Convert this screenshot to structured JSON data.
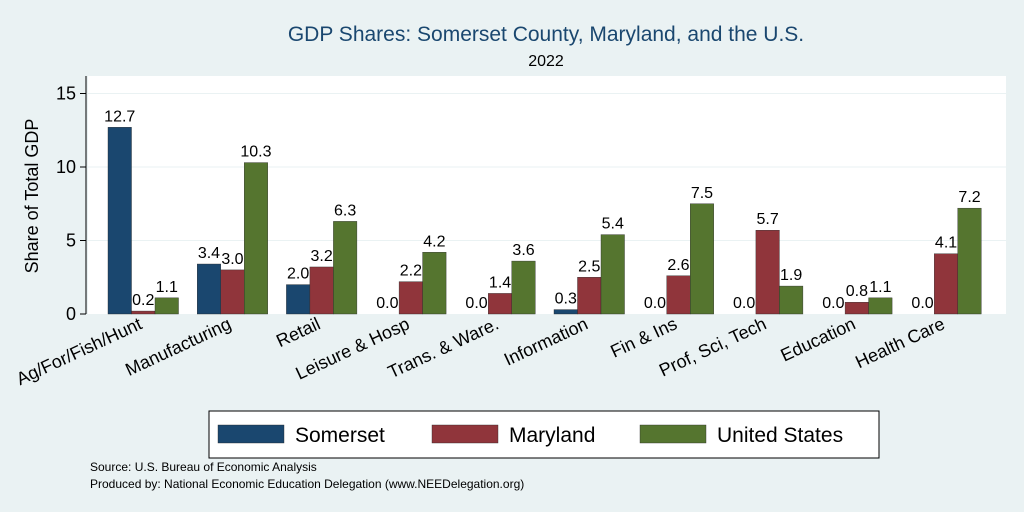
{
  "chart_data": {
    "type": "bar",
    "title": "GDP Shares: Somerset County, Maryland, and the U.S.",
    "subtitle": "2022",
    "xlabel": "",
    "ylabel": "Share of Total GDP",
    "ylim": [
      0,
      16
    ],
    "yticks": [
      0,
      5,
      10,
      15
    ],
    "grid": true,
    "legend_position": "bottom",
    "categories": [
      "Ag/For/Fish/Hunt",
      "Manufacturing",
      "Retail",
      "Leisure & Hosp",
      "Trans. & Ware.",
      "Information",
      "Fin & Ins",
      "Prof, Sci, Tech",
      "Education",
      "Health Care"
    ],
    "series": [
      {
        "name": "Somerset",
        "color": "#1a476f",
        "values": [
          12.7,
          3.4,
          2.0,
          0.0,
          0.0,
          0.3,
          0.0,
          0.0,
          0.0,
          0.0
        ]
      },
      {
        "name": "Maryland",
        "color": "#90353b",
        "values": [
          0.2,
          3.0,
          3.2,
          2.2,
          1.4,
          2.5,
          2.6,
          5.7,
          0.8,
          4.1
        ]
      },
      {
        "name": "United States",
        "color": "#55752f",
        "values": [
          1.1,
          10.3,
          6.3,
          4.2,
          3.6,
          5.4,
          7.5,
          1.9,
          1.1,
          7.2
        ]
      }
    ]
  },
  "footer": {
    "source": "Source: U.S. Bureau of Economic Analysis",
    "produced": "Produced by: National Economic Education Delegation (www.NEEDelegation.org)"
  }
}
